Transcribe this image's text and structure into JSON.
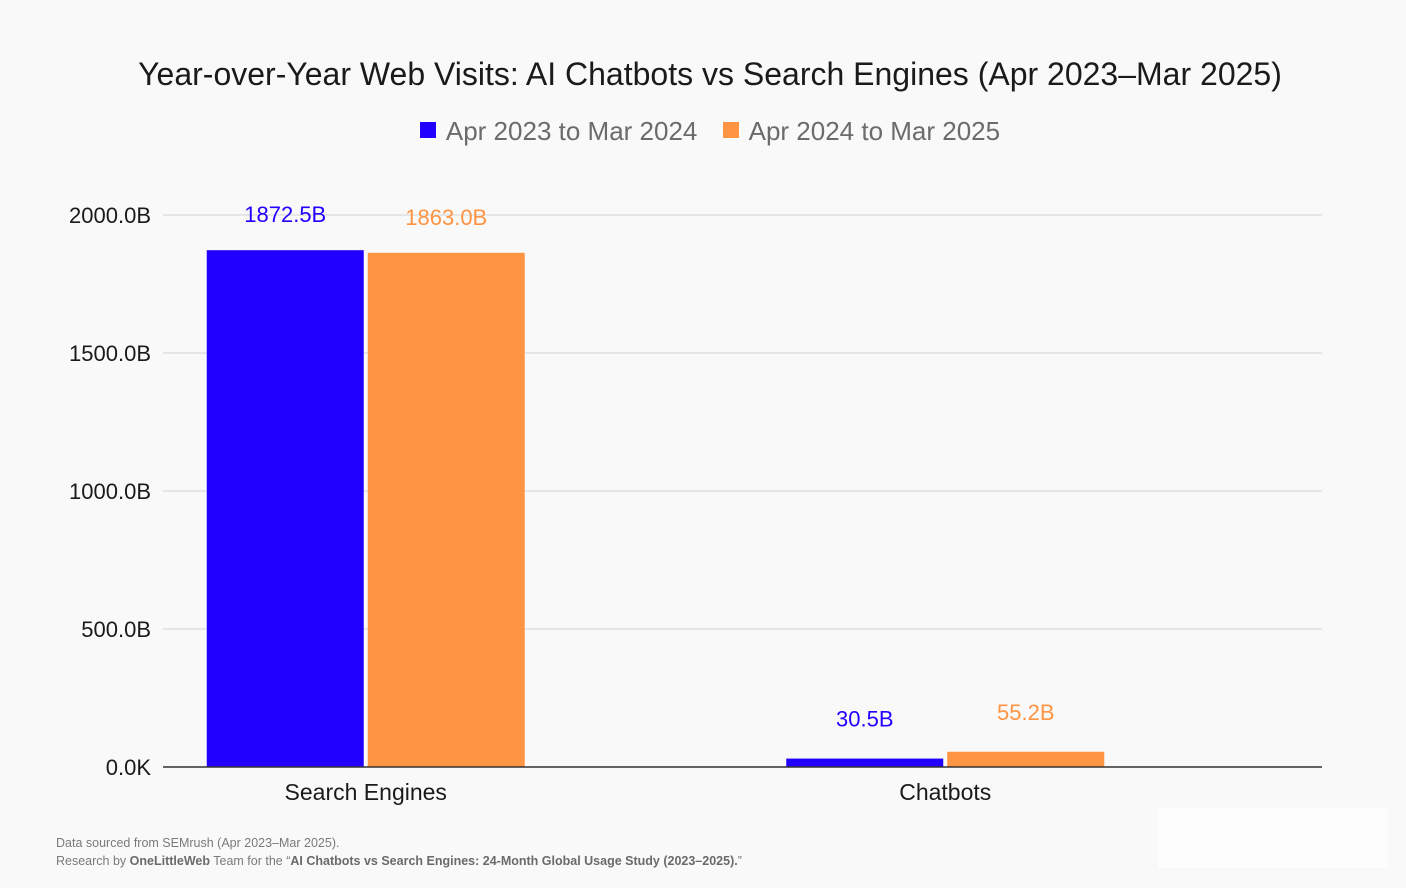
{
  "chart_data": {
    "type": "bar",
    "title": "Year-over-Year Web Visits: AI Chatbots vs Search Engines (Apr 2023–Mar 2025)",
    "categories": [
      "Search Engines",
      "Chatbots"
    ],
    "series": [
      {
        "name": "Apr 2023 to Mar 2024",
        "color": "#2200ff",
        "values": [
          1872.5,
          30.5
        ],
        "labels": [
          "1872.5B",
          "30.5B"
        ]
      },
      {
        "name": "Apr 2024 to Mar 2025",
        "color": "#ff9442",
        "values": [
          1863.0,
          55.2
        ],
        "labels": [
          "1863.0B",
          "55.2B"
        ]
      }
    ],
    "ylim": [
      0,
      2000
    ],
    "yticks": [
      0,
      500,
      1000,
      1500,
      2000
    ],
    "ytick_labels": [
      "0.0K",
      "500.0B",
      "1000.0B",
      "1500.0B",
      "2000.0B"
    ],
    "xlabel": "",
    "ylabel": "",
    "grid": true,
    "legend_position": "top-center"
  },
  "footer": {
    "line1": "Data sourced from SEMrush (Apr 2023–Mar 2025).",
    "line2_prefix": "Research by ",
    "line2_brand": "OneLittleWeb",
    "line2_middle": " Team for the “",
    "line2_study": "AI Chatbots vs Search Engines: 24-Month Global Usage Study (2023–2025).",
    "line2_suffix": "”"
  }
}
